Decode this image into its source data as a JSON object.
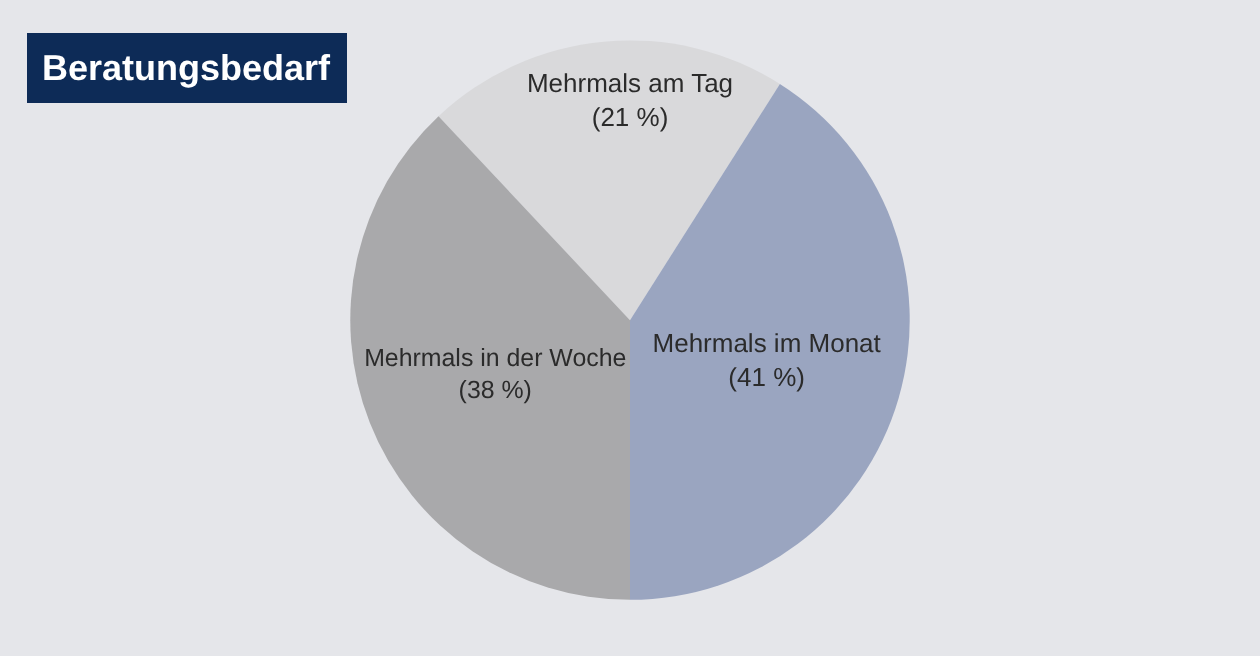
{
  "chart_data": {
    "type": "pie",
    "title": "Beratungsbedarf",
    "categories": [
      "Mehrmals am Tag",
      "Mehrmals im Monat",
      "Mehrmals in der Woche"
    ],
    "values": [
      21,
      41,
      38
    ],
    "value_labels": [
      "(21 %)",
      "(41 %)",
      "(38 %)"
    ],
    "colors": [
      "#d9d9db",
      "#9aa5c0",
      "#a9a9ab"
    ],
    "legend": false
  }
}
